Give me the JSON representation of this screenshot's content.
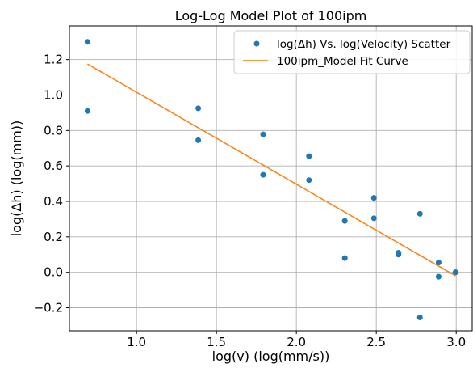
{
  "chart_data": {
    "type": "scatter",
    "title": "Log-Log Model Plot of 100ipm",
    "xlabel": "log(v) (log(mm/s))",
    "ylabel": "log(Δh) (log(mm))",
    "xlim": [
      0.58,
      3.1
    ],
    "ylim": [
      -0.33,
      1.39
    ],
    "xticks": [
      1.0,
      1.5,
      2.0,
      2.5,
      3.0
    ],
    "xtick_labels": [
      "1.0",
      "1.5",
      "2.0",
      "2.5",
      "3.0"
    ],
    "yticks": [
      -0.2,
      0.0,
      0.2,
      0.4,
      0.6,
      0.8,
      1.0,
      1.2
    ],
    "ytick_labels": [
      "−0.2",
      "0.0",
      "0.2",
      "0.4",
      "0.6",
      "0.8",
      "1.0",
      "1.2"
    ],
    "grid": true,
    "legend_position": "top-right",
    "series": [
      {
        "name": "log(Δh) Vs. log(Velocity) Scatter",
        "kind": "scatter",
        "color": "#1f77b4",
        "points": [
          {
            "x": 0.693,
            "y": 1.3
          },
          {
            "x": 0.693,
            "y": 0.91
          },
          {
            "x": 1.386,
            "y": 0.925
          },
          {
            "x": 1.386,
            "y": 0.745
          },
          {
            "x": 1.792,
            "y": 0.778
          },
          {
            "x": 1.792,
            "y": 0.55
          },
          {
            "x": 2.079,
            "y": 0.655
          },
          {
            "x": 2.079,
            "y": 0.52
          },
          {
            "x": 2.303,
            "y": 0.29
          },
          {
            "x": 2.303,
            "y": 0.08
          },
          {
            "x": 2.485,
            "y": 0.42
          },
          {
            "x": 2.485,
            "y": 0.305
          },
          {
            "x": 2.639,
            "y": 0.11
          },
          {
            "x": 2.639,
            "y": 0.1
          },
          {
            "x": 2.773,
            "y": 0.33
          },
          {
            "x": 2.773,
            "y": -0.255
          },
          {
            "x": 2.89,
            "y": 0.055
          },
          {
            "x": 2.89,
            "y": -0.025
          },
          {
            "x": 2.996,
            "y": 0.0
          },
          {
            "x": 2.996,
            "y": 0.0
          }
        ]
      },
      {
        "name": "100ipm_Model Fit Curve",
        "kind": "line",
        "color": "#ff7f0e",
        "points": [
          {
            "x": 0.693,
            "y": 1.175
          },
          {
            "x": 2.996,
            "y": -0.02
          }
        ]
      }
    ]
  }
}
